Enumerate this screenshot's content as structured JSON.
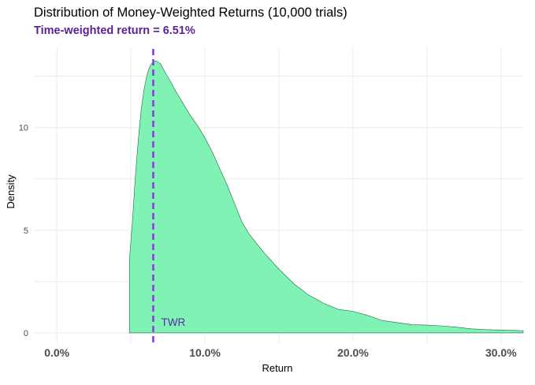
{
  "chart_data": {
    "type": "area",
    "title": "Distribution of Money-Weighted Returns (10,000 trials)",
    "subtitle": "Time-weighted return = 6.51%",
    "xlabel": "Return",
    "ylabel": "Density",
    "xlim": [
      -0.015,
      0.315
    ],
    "ylim": [
      -0.5,
      13.9
    ],
    "x_ticks": [
      0.0,
      0.1,
      0.2,
      0.3
    ],
    "x_tick_labels": [
      "0.0%",
      "10.0%",
      "20.0%",
      "30.0%"
    ],
    "y_ticks": [
      0,
      5,
      10
    ],
    "y_tick_labels": [
      "0",
      "5",
      "10"
    ],
    "grid": true,
    "series": [
      {
        "x": [
          0.049,
          0.051,
          0.053,
          0.055,
          0.057,
          0.059,
          0.061,
          0.063,
          0.065,
          0.067,
          0.07,
          0.073,
          0.077,
          0.08,
          0.085,
          0.09,
          0.095,
          0.1,
          0.105,
          0.11,
          0.115,
          0.12,
          0.125,
          0.13,
          0.14,
          0.15,
          0.16,
          0.17,
          0.18,
          0.19,
          0.2,
          0.21,
          0.22,
          0.23,
          0.24,
          0.25,
          0.26,
          0.27,
          0.28,
          0.29,
          0.3,
          0.31,
          0.315
        ],
        "y": [
          3.55,
          5.4,
          7.6,
          9.4,
          10.9,
          11.9,
          12.6,
          13.0,
          13.2,
          13.25,
          13.1,
          12.7,
          12.2,
          11.8,
          11.2,
          10.6,
          10.1,
          9.5,
          8.8,
          8.0,
          7.2,
          6.3,
          5.4,
          4.8,
          3.9,
          3.1,
          2.4,
          1.85,
          1.45,
          1.15,
          1.05,
          0.85,
          0.6,
          0.5,
          0.4,
          0.38,
          0.34,
          0.28,
          0.2,
          0.16,
          0.14,
          0.12,
          0.11
        ]
      }
    ],
    "reference_line": {
      "x": 0.0651,
      "label": "TWR"
    },
    "colors": {
      "fill": "#7ff2b4",
      "stroke": "#1f6b45",
      "reference_line": "#8a3ddc",
      "annotation": "#5a2ca0",
      "subtitle": "#5a1f99",
      "grid": "#ebebeb"
    }
  }
}
